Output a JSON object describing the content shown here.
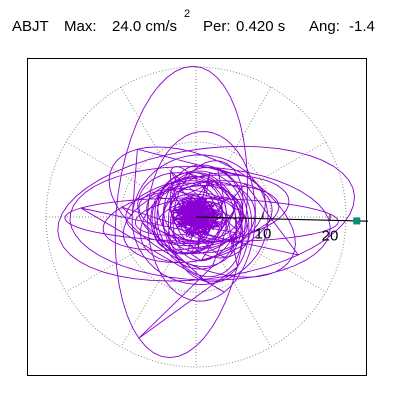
{
  "header": {
    "station": "ABJT",
    "max_label": "Max:",
    "max_value": "24.0 cm/s",
    "max_exp": "2",
    "per_label": "Per:",
    "per_value": "0.420 s",
    "ang_label": "Ang:",
    "ang_value": "-1.4"
  },
  "chart_data": {
    "type": "scatter",
    "description": "particle motion hodogram (polar plot)",
    "r_ticks": [
      10,
      20
    ],
    "tick_labels": [
      "10",
      "20"
    ],
    "r_max": 24.0,
    "grid": "dotted polar rings and radial lines",
    "trace_color": "#8a00d4",
    "marker_color": "#0a8f72",
    "marker_angle_deg": -1.4,
    "marker_r": 24.0
  }
}
